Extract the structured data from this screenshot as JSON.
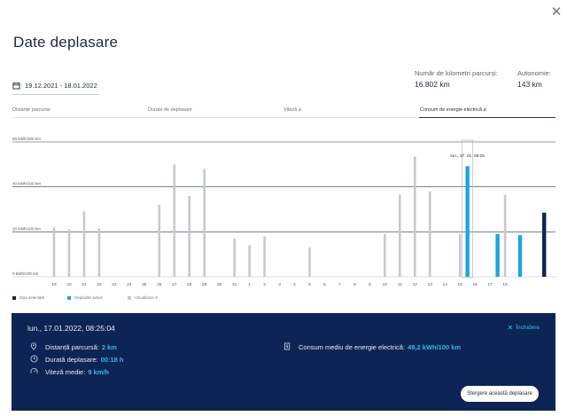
{
  "close_icon": "close-icon",
  "title": "Date deplasare",
  "date_range": {
    "icon": "calendar-icon",
    "value": "19.12.2021 - 18.01.2022"
  },
  "stats": {
    "km_label": "Număr de kilometri parcurși:",
    "km_value": "16.802 km",
    "autonomy_label": "Autonomie:",
    "autonomy_value": "143 km"
  },
  "tabs": [
    {
      "label": "Distanțe parcurse",
      "active": false
    },
    {
      "label": "Durate de deplasare",
      "active": false
    },
    {
      "label": "Viteză ⌀",
      "active": false
    },
    {
      "label": "Consum de energie electrică ⌀",
      "active": true
    }
  ],
  "chart_data": {
    "type": "bar",
    "ylabel": "",
    "y_ticks": [
      "0 kWh/100 km",
      "20 kWh/100 km",
      "40 kWh/100 km",
      "60 kWh/100 km"
    ],
    "ylim": [
      0,
      60
    ],
    "x_tick_labels": [
      "19",
      "20",
      "21",
      "22",
      "23",
      "24",
      "25",
      "26",
      "27",
      "28",
      "29",
      "30",
      "31",
      "1",
      "2",
      "3",
      "4",
      "5",
      "6",
      "7",
      "8",
      "9",
      "10",
      "11",
      "12",
      "13",
      "14",
      "15",
      "16",
      "17",
      "18"
    ],
    "tooltip": "lun., 17. 01. 08:25",
    "bars": [
      {
        "day": "19",
        "value": 22,
        "kind": "visual"
      },
      {
        "day": "20",
        "value": 21,
        "kind": "visual"
      },
      {
        "day": "21",
        "value": 29,
        "kind": "visual"
      },
      {
        "day": "22",
        "value": 21.5,
        "kind": "visual"
      },
      {
        "day": "26",
        "value": 32,
        "kind": "visual"
      },
      {
        "day": "27",
        "value": 50,
        "kind": "visual"
      },
      {
        "day": "28",
        "value": 36,
        "kind": "visual"
      },
      {
        "day": "29",
        "value": 48,
        "kind": "visual"
      },
      {
        "day": "31",
        "value": 17,
        "kind": "visual"
      },
      {
        "day": "1",
        "value": 14,
        "kind": "visual"
      },
      {
        "day": "2",
        "value": 18,
        "kind": "visual"
      },
      {
        "day": "5",
        "value": 13,
        "kind": "visual"
      },
      {
        "day": "10",
        "value": 19,
        "kind": "visual"
      },
      {
        "day": "11",
        "value": 36.5,
        "kind": "visual"
      },
      {
        "day": "12",
        "value": 53.5,
        "kind": "visual"
      },
      {
        "day": "13",
        "value": 38,
        "kind": "visual"
      },
      {
        "day": "15",
        "value": 19,
        "kind": "visual"
      },
      {
        "day": "17",
        "value": 49.2,
        "kind": "selected-trip"
      },
      {
        "day": "17",
        "value": 19,
        "kind": "selected-trip"
      },
      {
        "day": "17",
        "value": 18.5,
        "kind": "selected-trip"
      },
      {
        "day": "17",
        "value": 28.5,
        "kind": "selected-day"
      },
      {
        "day": "18",
        "value": 36.5,
        "kind": "visual"
      }
    ],
    "legend": [
      {
        "name": "Ziua selectată",
        "color": "#0c2554"
      },
      {
        "name": "Deplasări active",
        "color": "#1aa6e0"
      },
      {
        "name": "Vizualizare zi",
        "color": "#c5cacf"
      }
    ],
    "grid": true
  },
  "panel": {
    "title": "lun., 17.01.2022, 08:25:04",
    "hide_label": "Închidere",
    "distance_label": "Distanță parcursă:",
    "distance_value": "2 km",
    "duration_label": "Durată deplasare:",
    "duration_value": "00:18 h",
    "speed_label": "Viteză medie:",
    "speed_value": "9 km/h",
    "consumption_label": "Consum mediu de energie electrică:",
    "consumption_value": "49,2 kWh/100 km",
    "delete_button": "Ștergere această deplasare"
  }
}
